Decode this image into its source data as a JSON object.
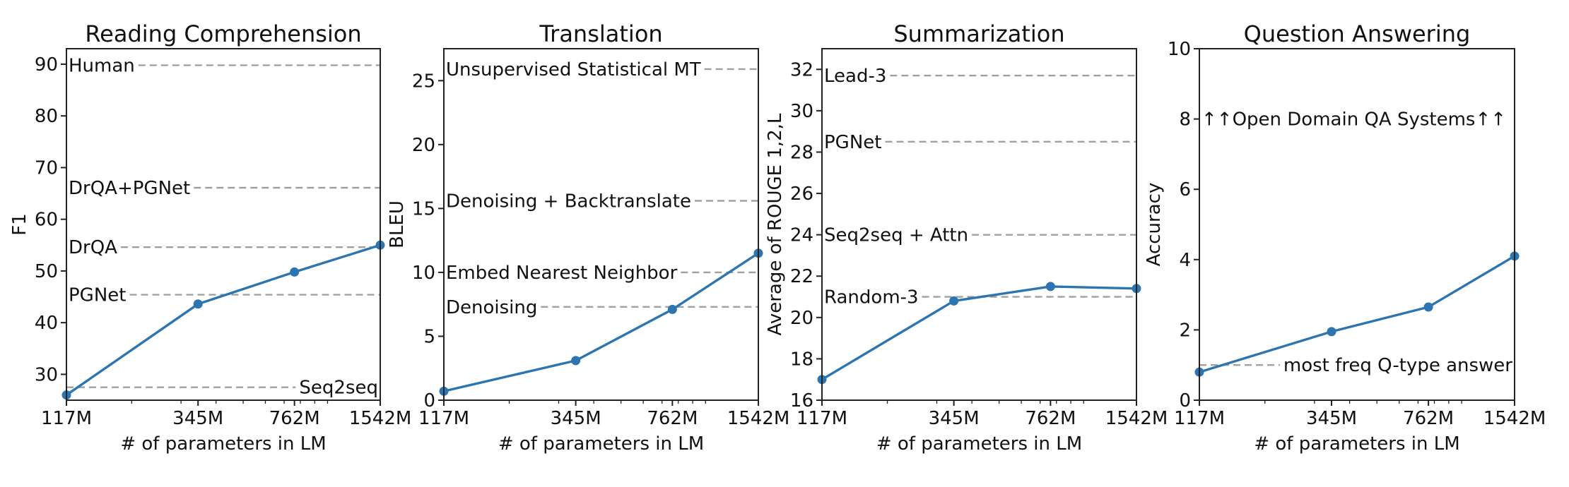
{
  "chart_data": [
    {
      "type": "line",
      "title": "Reading Comprehension",
      "xlabel": "# of parameters in LM",
      "ylabel": "F1",
      "x_scale": "log",
      "x": [
        117,
        345,
        762,
        1542
      ],
      "x_tick_labels": [
        "117M",
        "345M",
        "762M",
        "1542M"
      ],
      "ylim": [
        25,
        93
      ],
      "y_ticks": [
        30,
        40,
        50,
        60,
        70,
        80,
        90
      ],
      "series": [
        {
          "values": [
            26,
            43.6,
            49.8,
            55
          ]
        }
      ],
      "reference_lines": [
        {
          "label": "Human",
          "y": 89.8,
          "label_side": "left"
        },
        {
          "label": "DrQA+PGNet",
          "y": 66.1,
          "label_side": "left"
        },
        {
          "label": "DrQA",
          "y": 54.6,
          "label_side": "left"
        },
        {
          "label": "PGNet",
          "y": 45.4,
          "label_side": "left"
        },
        {
          "label": "Seq2seq",
          "y": 27.5,
          "label_side": "right"
        }
      ],
      "color": "#2c75b0",
      "grid": false
    },
    {
      "type": "line",
      "title": "Translation",
      "xlabel": "# of parameters in LM",
      "ylabel": "BLEU",
      "x_scale": "log",
      "x": [
        117,
        345,
        762,
        1542
      ],
      "x_tick_labels": [
        "117M",
        "345M",
        "762M",
        "1542M"
      ],
      "ylim": [
        0,
        27.5
      ],
      "y_ticks": [
        0,
        5,
        10,
        15,
        20,
        25
      ],
      "series": [
        {
          "values": [
            0.7,
            3.1,
            7.1,
            11.5
          ]
        }
      ],
      "reference_lines": [
        {
          "label": "Unsupervised Statistical MT",
          "y": 25.9,
          "label_side": "left"
        },
        {
          "label": "Denoising + Backtranslate",
          "y": 15.6,
          "label_side": "left"
        },
        {
          "label": "Embed Nearest Neighbor",
          "y": 10,
          "label_side": "left"
        },
        {
          "label": "Denoising",
          "y": 7.3,
          "label_side": "left"
        }
      ],
      "color": "#2c75b0",
      "grid": false
    },
    {
      "type": "line",
      "title": "Summarization",
      "xlabel": "# of parameters in LM",
      "ylabel": "Average of ROUGE 1,2,L",
      "x_scale": "log",
      "x": [
        117,
        345,
        762,
        1542
      ],
      "x_tick_labels": [
        "117M",
        "345M",
        "762M",
        "1542M"
      ],
      "ylim": [
        16,
        33
      ],
      "y_ticks": [
        16,
        18,
        20,
        22,
        24,
        26,
        28,
        30,
        32
      ],
      "series": [
        {
          "values": [
            17,
            20.8,
            21.5,
            21.4
          ]
        }
      ],
      "reference_lines": [
        {
          "label": "Lead-3",
          "y": 31.7,
          "label_side": "left"
        },
        {
          "label": "PGNet",
          "y": 28.5,
          "label_side": "left"
        },
        {
          "label": "Seq2seq + Attn",
          "y": 24,
          "label_side": "left"
        },
        {
          "label": "Random-3",
          "y": 21,
          "label_side": "left"
        }
      ],
      "color": "#2c75b0",
      "grid": false
    },
    {
      "type": "line",
      "title": "Question Answering",
      "xlabel": "# of parameters in LM",
      "ylabel": "Accuracy",
      "x_scale": "log",
      "x": [
        117,
        345,
        762,
        1542
      ],
      "x_tick_labels": [
        "117M",
        "345M",
        "762M",
        "1542M"
      ],
      "ylim": [
        0,
        10
      ],
      "y_ticks": [
        0,
        2,
        4,
        6,
        8,
        10
      ],
      "series": [
        {
          "values": [
            0.8,
            1.95,
            2.65,
            4.1
          ]
        }
      ],
      "reference_lines": [
        {
          "label": "most freq Q-type answer",
          "y": 1,
          "label_side": "right"
        }
      ],
      "annotations": [
        {
          "text": "↑↑Open Domain QA Systems↑↑",
          "y": 8
        }
      ],
      "color": "#2c75b0",
      "grid": false
    }
  ]
}
